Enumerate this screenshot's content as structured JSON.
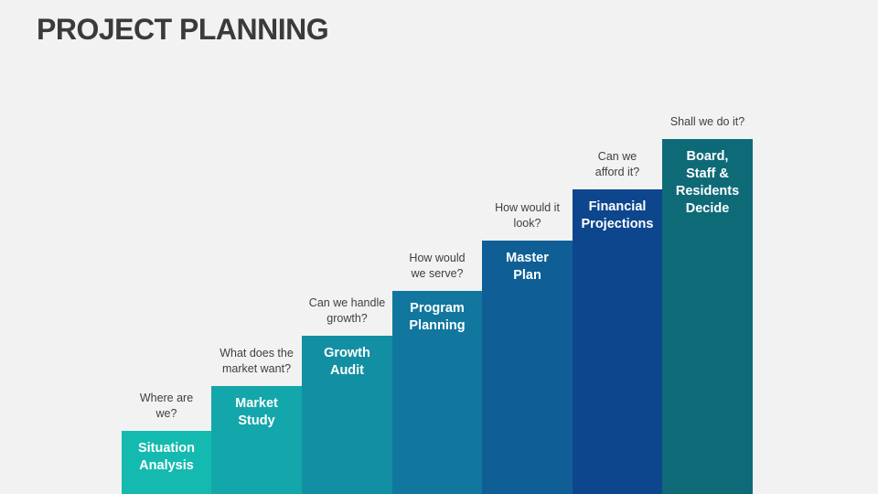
{
  "title": "PROJECT PLANNING",
  "steps": [
    {
      "label": "Situation Analysis",
      "question": "Where are we?",
      "color": "#14bab0"
    },
    {
      "label": "Market Study",
      "question": "What does the market want?",
      "color": "#13a7ab"
    },
    {
      "label": "Growth Audit",
      "question": "Can we handle growth?",
      "color": "#138fa3"
    },
    {
      "label": "Program Planning",
      "question": "How would we serve?",
      "color": "#11779e"
    },
    {
      "label": "Master Plan",
      "question": "How would it look?",
      "color": "#0f5f96"
    },
    {
      "label": "Financial Projections",
      "question": "Can we afford it?",
      "color": "#0e468d"
    },
    {
      "label": "Board, Staff & Residents Decide",
      "question": "Shall we do it?",
      "color": "#0f6a78"
    }
  ]
}
